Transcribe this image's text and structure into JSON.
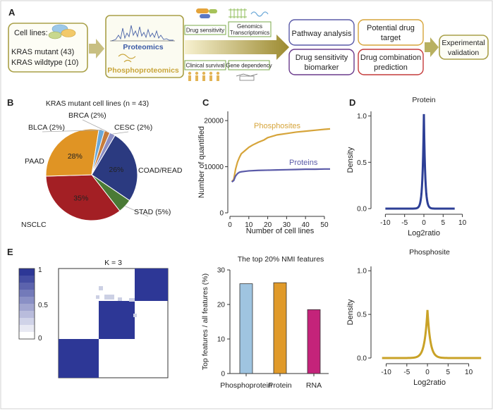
{
  "panels": {
    "a": {
      "letter": "A",
      "cell_lines_title": "Cell lines:",
      "kras_mutant": "KRAS mutant (43)",
      "kras_wildtype": "KRAS wildtype (10)",
      "proteomics": "Proteomics",
      "phosphoproteomics": "Phosphoproteomics",
      "data_boxes": [
        "Drug sensitivity",
        "Genomics",
        "Transcriptomics",
        "Clinical survival",
        "Gene dependency"
      ],
      "analysis_boxes": [
        "Pathway analysis",
        "Potential drug",
        "target",
        "Drug sensitivity",
        "biomarker",
        "Drug combination",
        "prediction"
      ],
      "validation": [
        "Experimental",
        "validation"
      ]
    },
    "b": {
      "letter": "B"
    },
    "c": {
      "letter": "C"
    },
    "d": {
      "letter": "D"
    },
    "e": {
      "letter": "E"
    }
  },
  "chart_data": [
    {
      "id": "pie",
      "type": "pie",
      "title": "KRAS mutant cell lines (n = 43)",
      "slices": [
        {
          "label": "COAD/READ",
          "pct_text": "26%",
          "value": 26,
          "color": "#2b3a80"
        },
        {
          "label": "STAD (5%)",
          "pct_text": "",
          "value": 5,
          "color": "#4a7a35"
        },
        {
          "label": "NSCLC",
          "pct_text": "35%",
          "value": 35,
          "color": "#a31f24"
        },
        {
          "label": "PAAD",
          "pct_text": "28%",
          "value": 28,
          "color": "#e09424"
        },
        {
          "label": "BLCA (2%)",
          "pct_text": "",
          "value": 2,
          "color": "#6aa8d8"
        },
        {
          "label": "BRCA (2%)",
          "pct_text": "",
          "value": 2,
          "color": "#c77c3a"
        },
        {
          "label": "CESC (2%)",
          "pct_text": "",
          "value": 2,
          "color": "#8b8ec4"
        }
      ]
    },
    {
      "id": "quant",
      "type": "line",
      "xlabel": "Number of cell lines",
      "ylabel": "Number of quantified",
      "xlim": [
        0,
        53
      ],
      "ylim": [
        0,
        22000
      ],
      "xticks": [
        0,
        10,
        20,
        30,
        40,
        50
      ],
      "yticks": [
        0,
        10000,
        20000
      ],
      "series": [
        {
          "name": "Phosphosites",
          "color": "#d6a43a",
          "x": [
            1,
            2,
            3,
            4,
            5,
            6,
            8,
            10,
            12,
            15,
            18,
            20,
            25,
            30,
            35,
            40,
            45,
            50,
            53
          ],
          "y": [
            6800,
            7200,
            9500,
            11000,
            12000,
            12800,
            13500,
            14200,
            14700,
            15300,
            15800,
            16300,
            16900,
            17200,
            17500,
            17700,
            17900,
            18100,
            18200
          ]
        },
        {
          "name": "Proteins",
          "color": "#5a5aa8",
          "x": [
            1,
            2,
            3,
            4,
            5,
            6,
            8,
            10,
            15,
            20,
            25,
            30,
            35,
            40,
            45,
            50,
            53
          ],
          "y": [
            6700,
            7000,
            8000,
            8500,
            8800,
            8900,
            9000,
            9100,
            9200,
            9250,
            9300,
            9350,
            9400,
            9450,
            9450,
            9500,
            9500
          ]
        }
      ]
    },
    {
      "id": "density_protein",
      "type": "area",
      "title": "Protein",
      "xlabel": "Log2ratio",
      "ylabel": "Density",
      "xlim": [
        -13,
        13
      ],
      "ylim": [
        0,
        1.05
      ],
      "xticks": [
        -10,
        -5,
        0,
        5,
        10
      ],
      "yticks": [
        0.0,
        0.5,
        1.0
      ],
      "color": "#2d3f96",
      "x_range": [
        -10,
        8
      ],
      "peak": 1.02,
      "width": 0.55
    },
    {
      "id": "density_phospho",
      "type": "area",
      "title": "Phosphosite",
      "xlabel": "Log2ratio",
      "ylabel": "Density",
      "xlim": [
        -13,
        14
      ],
      "ylim": [
        0,
        1.05
      ],
      "xticks": [
        -10,
        -5,
        0,
        5,
        10
      ],
      "yticks": [
        0.0,
        0.5,
        1.0
      ],
      "color": "#c9a227",
      "x_range": [
        -11,
        13
      ],
      "peak": 0.55,
      "width": 1.1
    },
    {
      "id": "consensus",
      "type": "heatmap",
      "title": "K = 3",
      "colorbar_ticks": [
        "1",
        "0.5",
        "0"
      ],
      "clusters": 3
    },
    {
      "id": "nmi",
      "type": "bar",
      "title": "The top 20% NMI features",
      "ylabel": "Top features / all features (%)",
      "categories": [
        "Phosphoprotein",
        "Protein",
        "RNA"
      ],
      "values": [
        26,
        26.3,
        18.5
      ],
      "colors": [
        "#9fc4e0",
        "#e09a2a",
        "#c4237a"
      ],
      "ylim": [
        0,
        30
      ],
      "yticks": [
        0,
        10,
        20,
        30
      ]
    }
  ]
}
